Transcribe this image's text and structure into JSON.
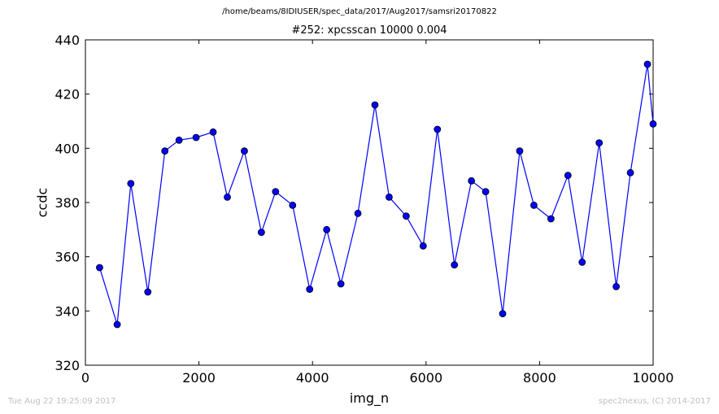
{
  "header": {
    "path": "/home/beams/8IDIUSER/spec_data/2017/Aug2017/samsri20170822"
  },
  "footer": {
    "timestamp": "Tue Aug 22 19:25:09 2017",
    "credit": "spec2nexus, (C) 2014-2017"
  },
  "colors": {
    "series": "#0000ff",
    "marker_edge": "#000000"
  },
  "chart_data": {
    "type": "line",
    "title": "#252: xpcsscan 10000 0.004",
    "xlabel": "img_n",
    "ylabel": "ccdc",
    "xlim": [
      0,
      10000
    ],
    "ylim": [
      320,
      440
    ],
    "xticks": [
      0,
      2000,
      4000,
      6000,
      8000,
      10000
    ],
    "yticks": [
      320,
      340,
      360,
      380,
      400,
      420,
      440
    ],
    "grid": false,
    "series": [
      {
        "marker": "circle",
        "x": [
          250,
          560,
          800,
          1100,
          1400,
          1650,
          1950,
          2250,
          2500,
          2800,
          3100,
          3350,
          3650,
          3950,
          4250,
          4500,
          4800,
          5100,
          5350,
          5650,
          5950,
          6200,
          6500,
          6800,
          7050,
          7350,
          7650,
          7900,
          8200,
          8500,
          8750,
          9050,
          9350,
          9600,
          9900,
          10000
        ],
        "y": [
          356,
          335,
          387,
          347,
          399,
          403,
          404,
          406,
          382,
          399,
          369,
          384,
          379,
          348,
          370,
          350,
          376,
          416,
          382,
          375,
          364,
          407,
          357,
          388,
          384,
          339,
          399,
          379,
          374,
          390,
          358,
          402,
          349,
          391,
          431,
          409
        ]
      }
    ]
  }
}
